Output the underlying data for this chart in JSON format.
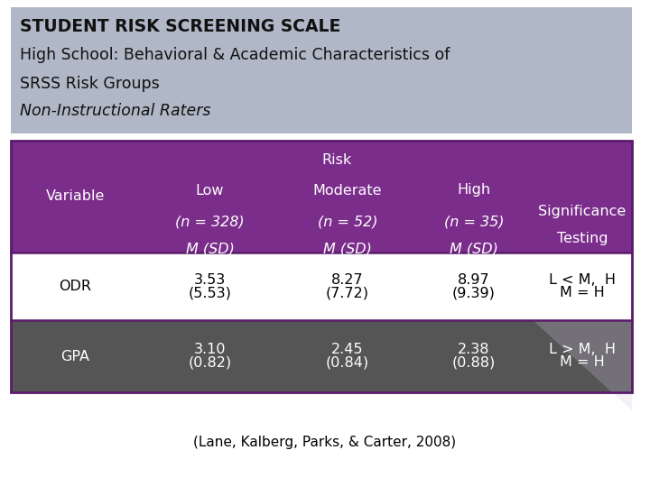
{
  "title_bg": "#B0B7C6",
  "header_bg": "#7B2D8B",
  "odr_row_bg": "#FFFFFF",
  "gpa_row_bg": "#555555",
  "border_color": "#5A1A6B",
  "fig_bg": "#FFFFFF",
  "title_line1": "Student Risk Screening Scale",
  "title_line1_caps": "STUDENT RISK SCREENING SCALE",
  "title_line2": "High School: Behavioral & Academic Characteristics of",
  "title_line3": "SRSS Risk Groups",
  "title_line4": "Non-Instructional Raters",
  "citation": "(Lane, Kalberg, Parks, & Carter, 2008)",
  "col_var": "Variable",
  "col_risk": "Risk",
  "col_low1": "Low",
  "col_low2": "(n = 328)",
  "col_low3": "M (SD)",
  "col_mod1": "Moderate",
  "col_mod2": "(n = 52)",
  "col_mod3": "M (SD)",
  "col_high1": "High",
  "col_high2": "(n = 35)",
  "col_high3": "M (SD)",
  "col_sig1": "Significance",
  "col_sig2": "Testing",
  "odr_label": "ODR",
  "odr_low1": "3.53",
  "odr_low2": "(5.53)",
  "odr_mod1": "8.27",
  "odr_mod2": "(7.72)",
  "odr_high1": "8.97",
  "odr_high2": "(9.39)",
  "odr_sig1": "L < M,  H",
  "odr_sig2": "M = H",
  "gpa_label": "GPA",
  "gpa_low1": "3.10",
  "gpa_low2": "(0.82)",
  "gpa_mod1": "2.45",
  "gpa_mod2": "(0.84)",
  "gpa_high1": "2.38",
  "gpa_high2": "(0.88)",
  "gpa_sig1": "L > M,  H",
  "gpa_sig2": "M = H"
}
